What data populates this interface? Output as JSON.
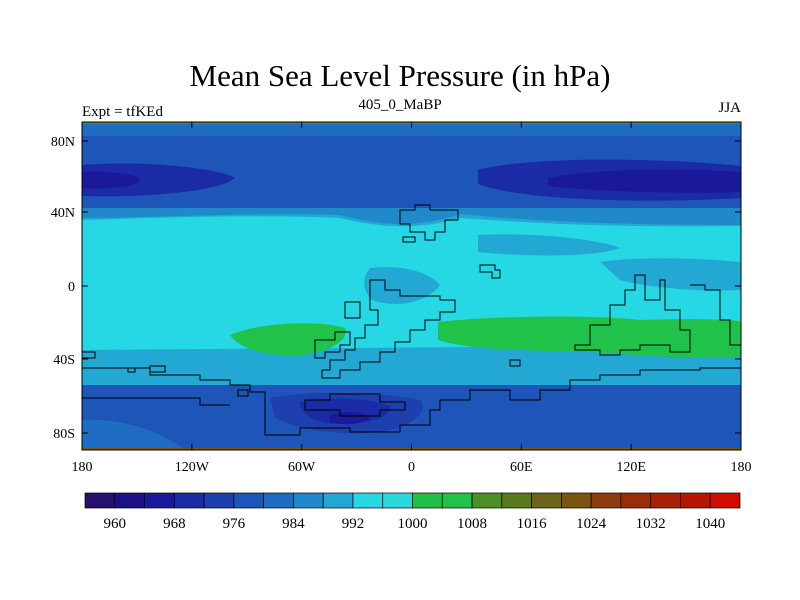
{
  "title": "Mean Sea Level Pressure (in hPa)",
  "subtitle_left": "Expt = tfKEd",
  "subtitle_center": "405_0_MaBP",
  "subtitle_right": "JJA",
  "lat_ticks": [
    "80N",
    "40N",
    "0",
    "40S",
    "80S"
  ],
  "lon_ticks": [
    "180",
    "120W",
    "60W",
    "0",
    "60E",
    "120E",
    "180"
  ],
  "colorbar": {
    "colors": [
      "#27106b",
      "#1d0f87",
      "#1a199a",
      "#1b2ba5",
      "#1e3fae",
      "#1d55b8",
      "#1f6dc3",
      "#1f89c9",
      "#22a8d2",
      "#26d8e4",
      "#2ad9dc",
      "#1ec045",
      "#20c24a",
      "#4e8f28",
      "#5a7a1d",
      "#6a6518",
      "#7c5412",
      "#8b3d0d",
      "#9a2d09",
      "#a92006",
      "#b81604",
      "#d00c02"
    ],
    "labels": [
      "960",
      "968",
      "976",
      "984",
      "992",
      "1000",
      "1008",
      "1016",
      "1024",
      "1032",
      "1040"
    ]
  }
}
